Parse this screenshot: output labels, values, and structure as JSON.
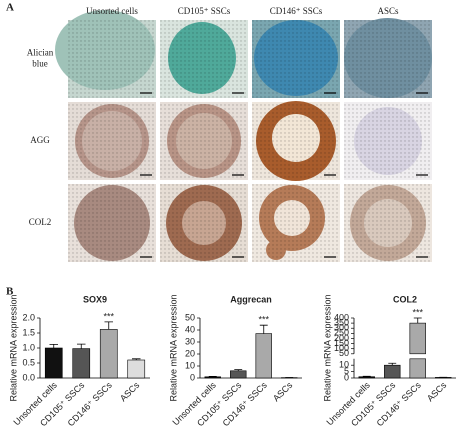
{
  "panel_a": {
    "label": "A",
    "columns": [
      "Unsorted cells",
      "CD105⁺ SSCs",
      "CD146⁺ SSCs",
      "ASCs"
    ],
    "rows": [
      [
        "Alician",
        "blue"
      ],
      [
        "AGG"
      ],
      [
        "COL2"
      ]
    ]
  },
  "panel_b": {
    "label": "B"
  },
  "chart_data": [
    {
      "type": "bar",
      "title": "SOX9",
      "ylabel": "Relative mRNA expression",
      "categories": [
        "Unsorted cells",
        "CD105⁺ SSCs",
        "CD146⁺ SSCs",
        "ASCs"
      ],
      "values": [
        1.0,
        0.98,
        1.62,
        0.6
      ],
      "errors": [
        0.12,
        0.15,
        0.25,
        0.04
      ],
      "colors": [
        "#111111",
        "#555555",
        "#a9a9a9",
        "#dddddd"
      ],
      "ylim": [
        0,
        2
      ],
      "yticks": [
        {
          "value": 0,
          "label": "0.0"
        },
        {
          "value": 0.5,
          "label": "0.5"
        },
        {
          "value": 1,
          "label": "1.0"
        },
        {
          "value": 1.5,
          "label": "1.5"
        },
        {
          "value": 2,
          "label": "2.0"
        }
      ],
      "annotations": [
        {
          "text": "***",
          "category": "CD146⁺ SSCs"
        }
      ]
    },
    {
      "type": "bar",
      "title": "Aggrecan",
      "ylabel": "Relative mRNA expression",
      "categories": [
        "Unsorted cells",
        "CD105⁺ SSCs",
        "CD146⁺ SSCs",
        "ASCs"
      ],
      "values": [
        1,
        6,
        37,
        0.3
      ],
      "errors": [
        0.3,
        1,
        7,
        0.1
      ],
      "colors": [
        "#111111",
        "#555555",
        "#a9a9a9",
        "#dddddd"
      ],
      "ylim": [
        0,
        50
      ],
      "yticks": [
        0,
        10,
        20,
        30,
        40,
        50
      ],
      "annotations": [
        {
          "text": "***",
          "category": "CD146⁺ SSCs"
        }
      ]
    },
    {
      "type": "bar",
      "title": "COL2",
      "ylabel": "Relative mRNA expression",
      "categories": [
        "Unsorted cells",
        "CD105⁺ SSCs",
        "CD146⁺ SSCs",
        "ASCs"
      ],
      "values": [
        1,
        10,
        350,
        0.5
      ],
      "errors": [
        0.3,
        1.5,
        50,
        0.1
      ],
      "colors": [
        "#111111",
        "#555555",
        "#a9a9a9",
        "#dddddd"
      ],
      "ylim": [
        0,
        400
      ],
      "ybreak": [
        15,
        50
      ],
      "yticks": [
        0,
        5,
        10,
        50,
        100,
        150,
        200,
        250,
        300,
        350,
        400
      ],
      "annotations": [
        {
          "text": "***",
          "category": "CD146⁺ SSCs"
        }
      ]
    }
  ]
}
